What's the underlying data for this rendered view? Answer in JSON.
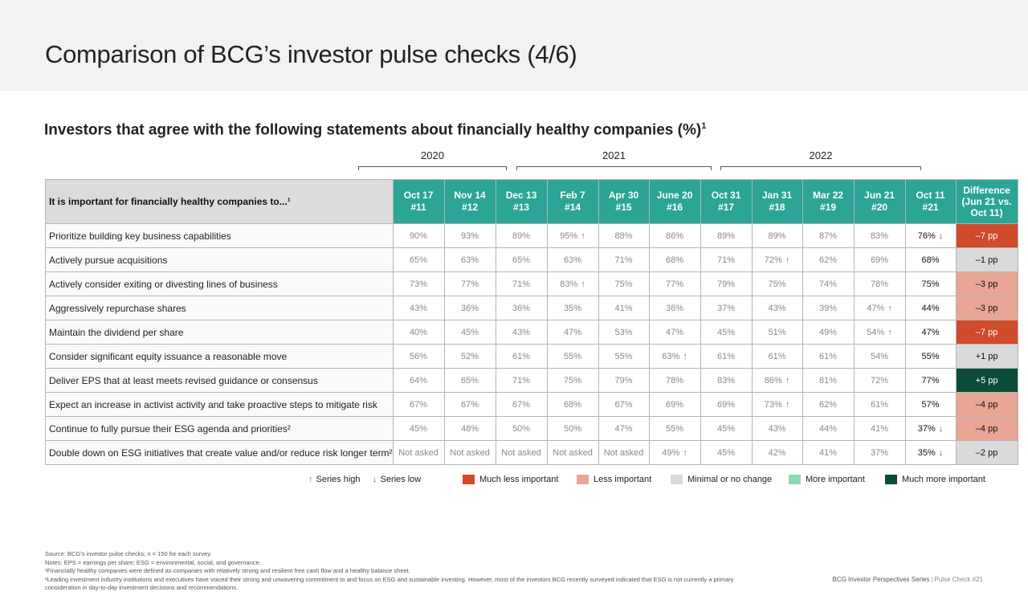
{
  "page_title": "Comparison of BCG’s investor pulse checks (4/6)",
  "subtitle": "Investors that agree with the following statements about financially healthy companies (%)",
  "subtitle_sup": "1",
  "years": [
    "2020",
    "2021",
    "2022"
  ],
  "table": {
    "row_header": "It is important for financially healthy companies to...¹",
    "columns": [
      {
        "date": "Oct 17",
        "num": "#11"
      },
      {
        "date": "Nov 14",
        "num": "#12"
      },
      {
        "date": "Dec 13",
        "num": "#13"
      },
      {
        "date": "Feb 7",
        "num": "#14"
      },
      {
        "date": "Apr 30",
        "num": "#15"
      },
      {
        "date": "June 20",
        "num": "#16"
      },
      {
        "date": "Oct 31",
        "num": "#17"
      },
      {
        "date": "Jan 31",
        "num": "#18"
      },
      {
        "date": "Mar 22",
        "num": "#19"
      },
      {
        "date": "Jun 21",
        "num": "#20"
      },
      {
        "date": "Oct 11",
        "num": "#21"
      }
    ],
    "diff_header": [
      "Difference",
      "(Jun 21 vs.",
      "Oct 11)"
    ],
    "rows": [
      {
        "label": "Prioritize building key business capabilities",
        "values": [
          "90%",
          "93%",
          "89%",
          "95%",
          "88%",
          "86%",
          "89%",
          "89%",
          "87%",
          "83%",
          "76%"
        ],
        "marks": [
          "",
          "",
          "",
          "up",
          "",
          "",
          "",
          "",
          "",
          "",
          "down"
        ],
        "diff": "–7 pp",
        "diff_level": "much_less"
      },
      {
        "label": "Actively pursue acquisitions",
        "values": [
          "65%",
          "63%",
          "65%",
          "63%",
          "71%",
          "68%",
          "71%",
          "72%",
          "62%",
          "69%",
          "68%"
        ],
        "marks": [
          "",
          "",
          "",
          "",
          "",
          "",
          "",
          "up",
          "",
          "",
          ""
        ],
        "diff": "–1 pp",
        "diff_level": "minimal"
      },
      {
        "label": "Actively consider exiting or divesting lines of business",
        "values": [
          "73%",
          "77%",
          "71%",
          "83%",
          "75%",
          "77%",
          "79%",
          "75%",
          "74%",
          "78%",
          "75%"
        ],
        "marks": [
          "",
          "",
          "",
          "up",
          "",
          "",
          "",
          "",
          "",
          "",
          ""
        ],
        "diff": "–3 pp",
        "diff_level": "less"
      },
      {
        "label": "Aggressively repurchase shares",
        "values": [
          "43%",
          "36%",
          "36%",
          "35%",
          "41%",
          "36%",
          "37%",
          "43%",
          "39%",
          "47%",
          "44%"
        ],
        "marks": [
          "",
          "",
          "",
          "",
          "",
          "",
          "",
          "",
          "",
          "up",
          ""
        ],
        "diff": "–3 pp",
        "diff_level": "less"
      },
      {
        "label": "Maintain the dividend per share",
        "values": [
          "40%",
          "45%",
          "43%",
          "47%",
          "53%",
          "47%",
          "45%",
          "51%",
          "49%",
          "54%",
          "47%"
        ],
        "marks": [
          "",
          "",
          "",
          "",
          "",
          "",
          "",
          "",
          "",
          "up",
          ""
        ],
        "diff": "–7 pp",
        "diff_level": "much_less"
      },
      {
        "label": "Consider significant equity issuance a reasonable move",
        "values": [
          "56%",
          "52%",
          "61%",
          "55%",
          "55%",
          "63%",
          "61%",
          "61%",
          "61%",
          "54%",
          "55%"
        ],
        "marks": [
          "",
          "",
          "",
          "",
          "",
          "up",
          "",
          "",
          "",
          "",
          ""
        ],
        "diff": "+1 pp",
        "diff_level": "minimal"
      },
      {
        "label": "Deliver EPS that at least meets revised guidance or consensus",
        "values": [
          "64%",
          "65%",
          "71%",
          "75%",
          "79%",
          "78%",
          "83%",
          "86%",
          "81%",
          "72%",
          "77%"
        ],
        "marks": [
          "",
          "",
          "",
          "",
          "",
          "",
          "",
          "up",
          "",
          "",
          ""
        ],
        "diff": "+5 pp",
        "diff_level": "much_more"
      },
      {
        "label": "Expect an increase in activist activity and take proactive steps to mitigate risk",
        "values": [
          "67%",
          "67%",
          "67%",
          "68%",
          "67%",
          "69%",
          "69%",
          "73%",
          "62%",
          "61%",
          "57%"
        ],
        "marks": [
          "",
          "",
          "",
          "",
          "",
          "",
          "",
          "up",
          "",
          "",
          ""
        ],
        "diff": "–4 pp",
        "diff_level": "less"
      },
      {
        "label": "Continue to fully pursue their ESG agenda and priorities²",
        "values": [
          "45%",
          "48%",
          "50%",
          "50%",
          "47%",
          "55%",
          "45%",
          "43%",
          "44%",
          "41%",
          "37%"
        ],
        "marks": [
          "",
          "",
          "",
          "",
          "",
          "",
          "",
          "",
          "",
          "",
          "down"
        ],
        "diff": "–4 pp",
        "diff_level": "less"
      },
      {
        "label": "Double down on ESG initiatives that create value and/or reduce risk longer term²",
        "values": [
          "Not asked",
          "Not asked",
          "Not asked",
          "Not asked",
          "Not asked",
          "49%",
          "45%",
          "42%",
          "41%",
          "37%",
          "35%"
        ],
        "marks": [
          "",
          "",
          "",
          "",
          "",
          "up",
          "",
          "",
          "",
          "",
          "down"
        ],
        "diff": "–2 pp",
        "diff_level": "minimal"
      }
    ]
  },
  "arrows": {
    "up": "↑",
    "down": "↓"
  },
  "legend": {
    "series_high": "Series high",
    "series_low": "Series low",
    "much_less": "Much less important",
    "less": "Less important",
    "minimal": "Minimal or no change",
    "more": "More important",
    "much_more": "Much more important"
  },
  "colors": {
    "header_teal": "#2aa596",
    "much_less": "#d04a2c",
    "less": "#e8a593",
    "minimal": "#d9d9d9",
    "more": "#8fd9b6",
    "much_more": "#0b4b3a",
    "up_arrow": "#2aa596",
    "down_arrow": "#c5361f"
  },
  "notes": [
    "Source: BCG’s investor pulse checks; n = 150 for each survey.",
    "Notes: EPS = earnings per share; ESG = environmental, social, and governance.",
    "¹Financially healthy companies were defined as companies with relatively strong and resilient free cash flow and a healthy balance sheet.",
    "²Leading investment industry institutions and executives have voiced their strong and unwavering commitment to and focus on ESG and sustainable investing. However, most of the investors BCG recently surveyed indicated that ESG is not currently a primary consideration in day-to-day investment decisions and recommendations."
  ],
  "footer": {
    "series": "BCG Investor Perspectives Series",
    "separator": "|",
    "pulse": "Pulse Check #21"
  }
}
